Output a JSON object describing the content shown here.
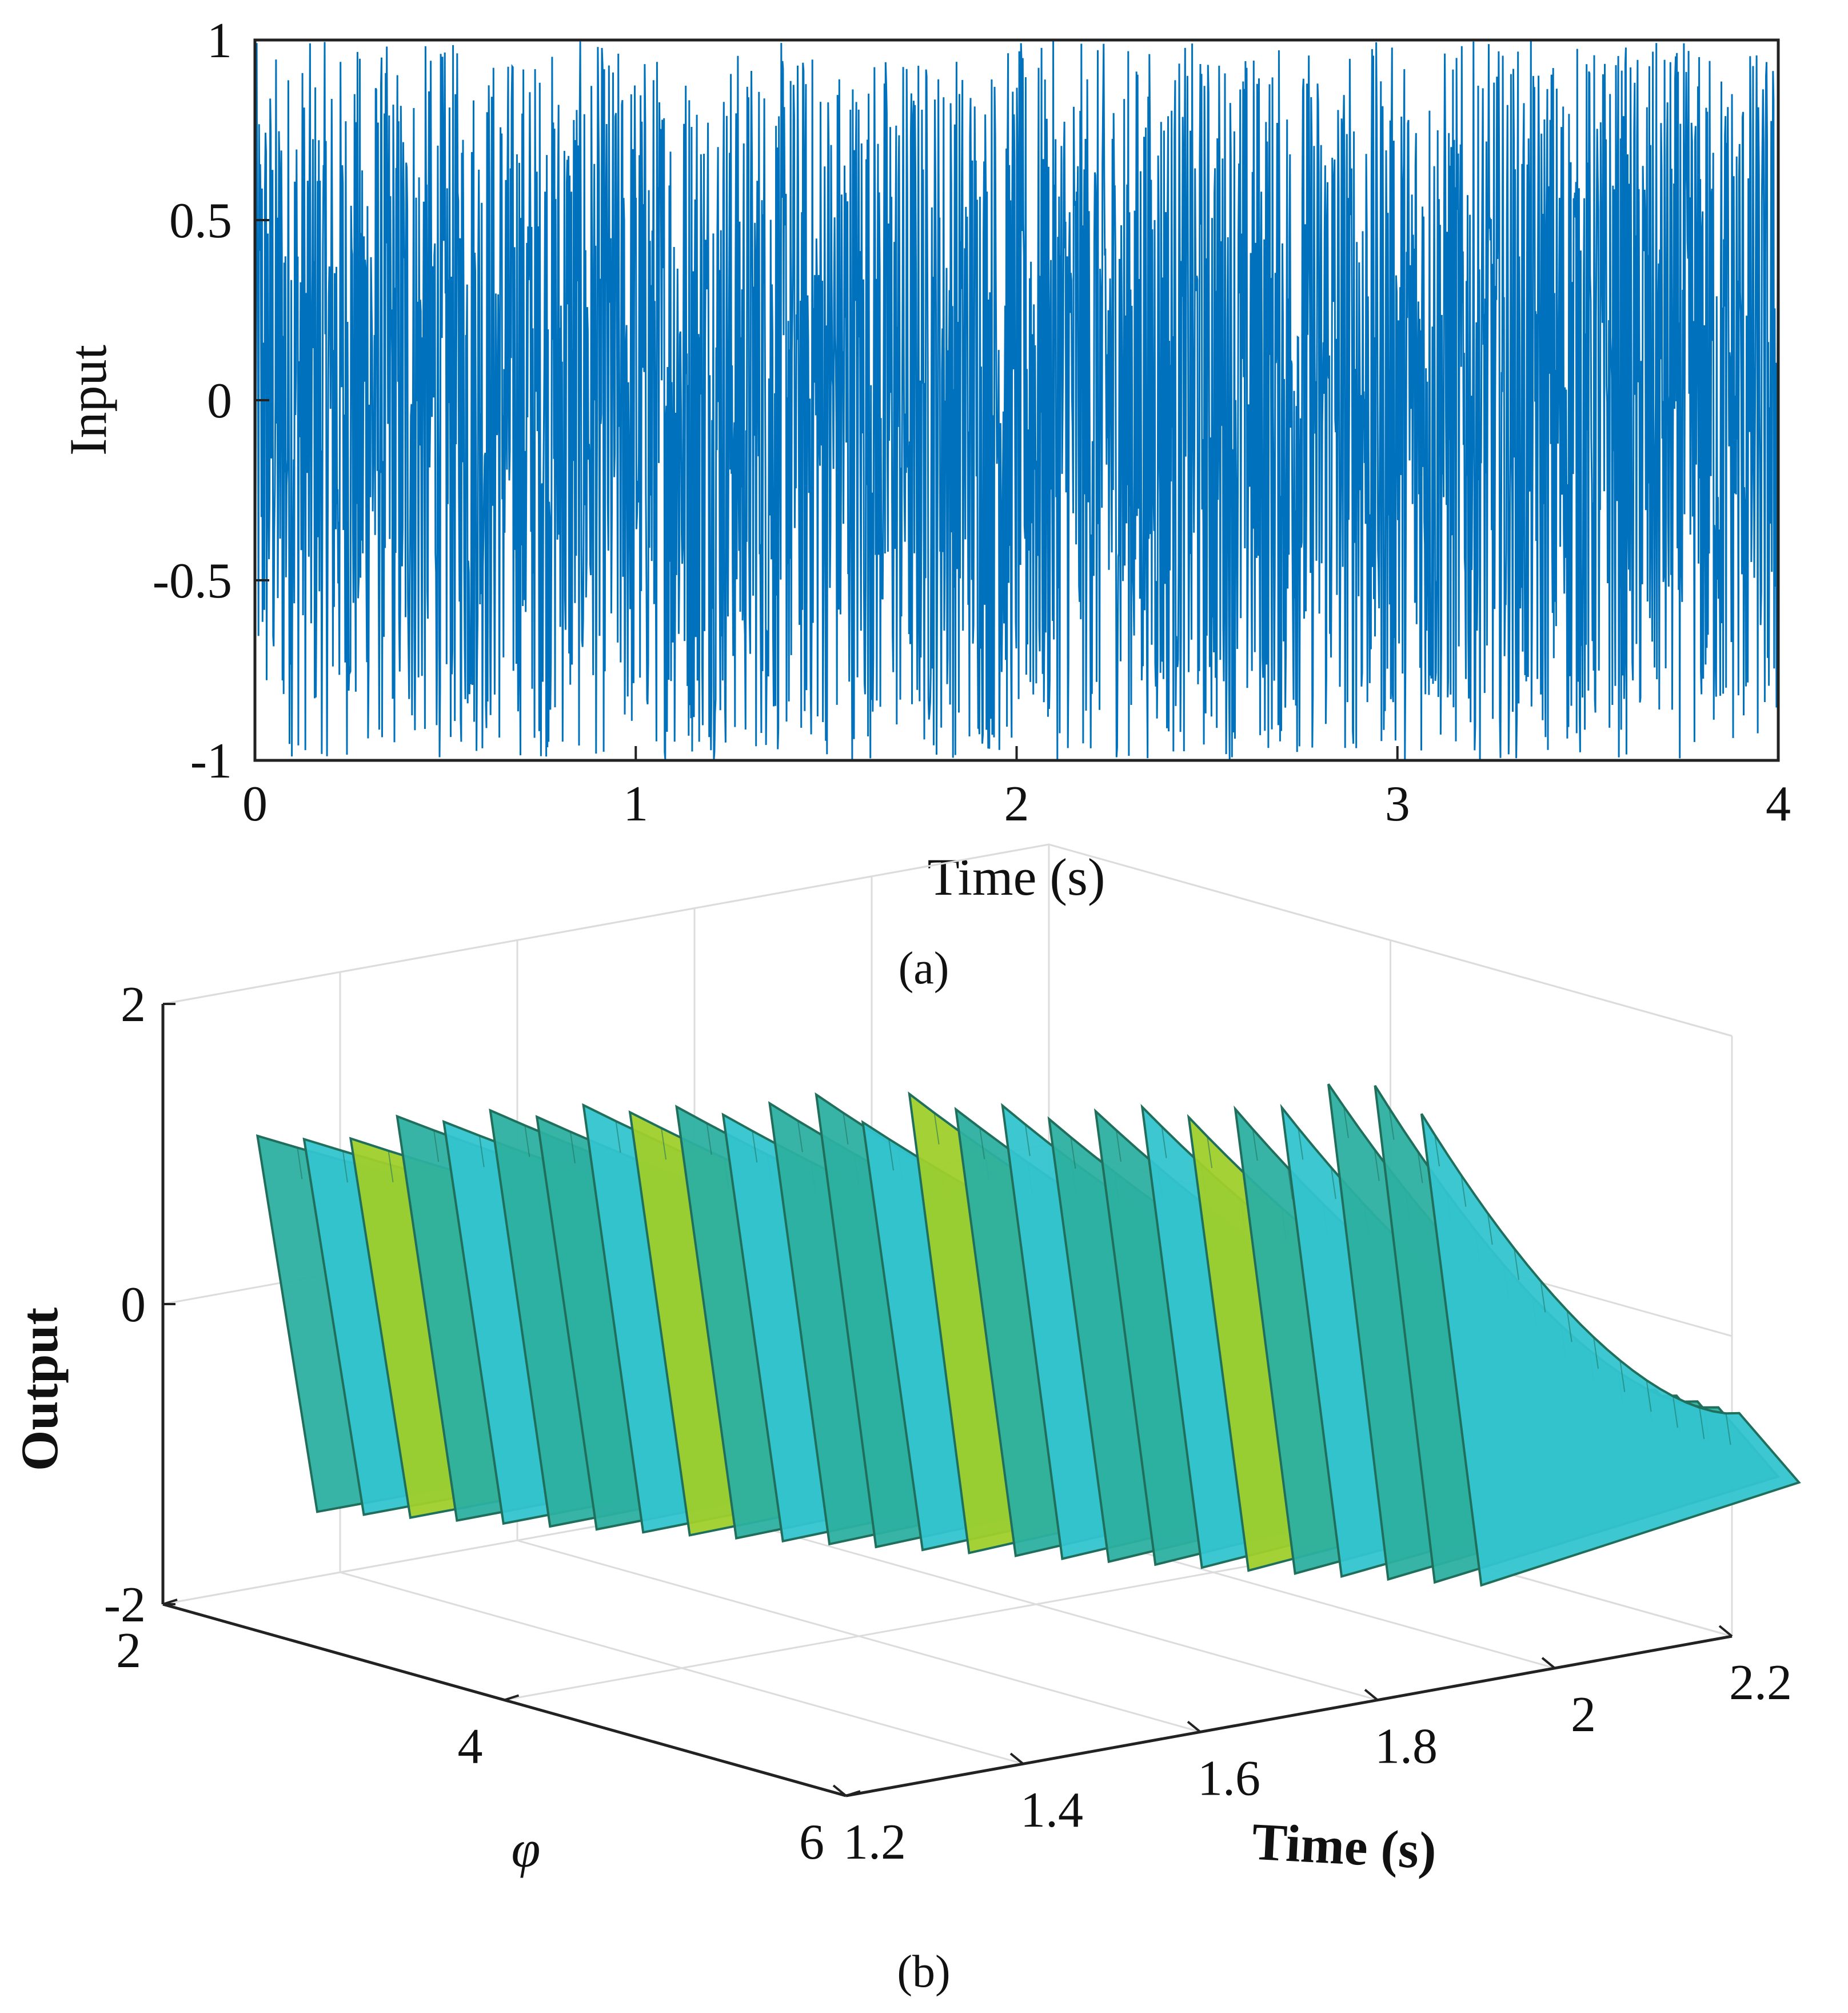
{
  "colors": {
    "signal": "#0072BD",
    "axis": "#222222",
    "grid": "#dcdcdc",
    "surface_dark": "#1f6f5c",
    "surface_mid": "#2cb0a0",
    "surface_light": "#33c4cf",
    "surface_yellow": "#9fcf2a"
  },
  "chart_data": [
    {
      "id": "a",
      "type": "line",
      "caption": "(a)",
      "title": "",
      "xlabel": "Time (s)",
      "ylabel": "Input",
      "xlim": [
        0,
        4
      ],
      "ylim": [
        -1,
        1
      ],
      "xticks": [
        "0",
        "1",
        "2",
        "3",
        "4"
      ],
      "yticks": [
        "-1",
        "-0.5",
        "0",
        "0.5",
        "1"
      ],
      "series": [
        {
          "name": "input",
          "description_values": "uniform random signal between -1 and 1 sampled over 0–4 s",
          "amplitude_min": -1,
          "amplitude_max": 1
        }
      ]
    },
    {
      "id": "b",
      "type": "surface",
      "caption": "(b)",
      "xlabel": "Time (s)",
      "ylabel": "φ",
      "zlabel": "Output",
      "xlim": [
        1.2,
        2.2
      ],
      "ylim": [
        2,
        6
      ],
      "zlim": [
        -2,
        2
      ],
      "xticks": [
        "1.2",
        "1.4",
        "1.6",
        "1.8",
        "2",
        "2.2"
      ],
      "yticks": [
        "2",
        "4",
        "6"
      ],
      "zticks": [
        "-2",
        "0",
        "2"
      ],
      "surface": {
        "peak_output_start": 1.3,
        "peak_output_end": 2.0,
        "output_at_end_time": -0.5,
        "ridges": 26
      }
    }
  ]
}
